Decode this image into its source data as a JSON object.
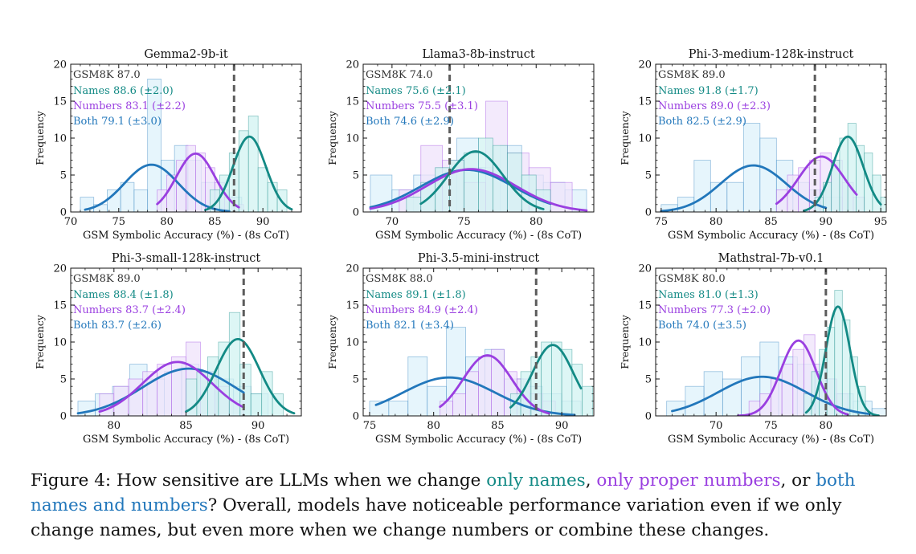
{
  "colors": {
    "names": "#138a85",
    "names_fill": "#d2f3f1",
    "numbers": "#9a3fe0",
    "numbers_fill": "#efe3fb",
    "both": "#2277bb",
    "both_fill": "#ddf1fb",
    "reference": "#5c5c5c"
  },
  "caption": {
    "prefix": "Figure 4: How sensitive are LLMs when we change ",
    "names": "only names",
    "sep1": ", ",
    "numbers": "only proper numbers",
    "sep2": ", or ",
    "both": "both names and numbers",
    "suffix": "? Overall, models have noticeable performance variation even if we only change names, but even more when we change numbers or combine these changes."
  },
  "chart_data": [
    {
      "type": "bar",
      "title": "Gemma2-9b-it",
      "xlabel": "GSM Symbolic Accuracy (%) - (8s CoT)",
      "ylabel": "Frequency",
      "xlim": [
        70,
        94
      ],
      "ylim": [
        0,
        20
      ],
      "xticks": [
        70,
        75,
        80,
        85,
        90
      ],
      "yticks": [
        0,
        5,
        10,
        15,
        20
      ],
      "reference": {
        "label": "GSM8K",
        "value": "87.0",
        "x": 87.0
      },
      "series": [
        {
          "key": "names",
          "name": "Names",
          "mean": "88.6",
          "std": "(±2.0)",
          "hist": {
            "start": 84.5,
            "width": 1,
            "counts": [
              3,
              5,
              8,
              11,
              13,
              6,
              4,
              3
            ]
          },
          "curve": {
            "mean": 88.6,
            "sd": 1.7,
            "peak": 10.2,
            "range": [
              84.0,
              93.0
            ]
          }
        },
        {
          "key": "numbers",
          "name": "Numbers",
          "mean": "83.1",
          "std": "(±2.2)",
          "hist": {
            "start": 79.0,
            "width": 1,
            "counts": [
              3,
              5,
              7,
              9,
              8,
              6,
              4,
              2,
              1
            ]
          },
          "curve": {
            "mean": 83.0,
            "sd": 2.0,
            "peak": 7.9,
            "range": [
              79.0,
              87.5
            ]
          }
        },
        {
          "key": "both",
          "name": "Both",
          "mean": "79.1",
          "std": "(±3.0)",
          "hist": {
            "start": 71.0,
            "width": 1.4,
            "counts": [
              2,
              1,
              3,
              4,
              3,
              18,
              7,
              9,
              7,
              4,
              3,
              2
            ]
          },
          "curve": {
            "mean": 78.4,
            "sd": 2.8,
            "peak": 6.4,
            "range": [
              71.5,
              86.5
            ]
          }
        }
      ]
    },
    {
      "type": "bar",
      "title": "Llama3-8b-instruct",
      "xlabel": "GSM Symbolic Accuracy (%) - (8s CoT)",
      "ylabel": "Frequency",
      "xlim": [
        68,
        84
      ],
      "ylim": [
        0,
        20
      ],
      "xticks": [
        70,
        75,
        80
      ],
      "yticks": [
        0,
        5,
        10,
        15,
        20
      ],
      "reference": {
        "label": "GSM8K",
        "value": "74.0",
        "x": 74.0
      },
      "series": [
        {
          "key": "names",
          "name": "Names",
          "mean": "75.6",
          "std": "(±2.1)",
          "hist": {
            "start": 71.0,
            "width": 1,
            "counts": [
              2,
              4,
              6,
              7,
              8,
              10,
              9,
              8,
              5,
              3
            ]
          },
          "curve": {
            "mean": 75.8,
            "sd": 1.9,
            "peak": 8.2,
            "range": [
              72.0,
              80.5
            ]
          }
        },
        {
          "key": "numbers",
          "name": "Numbers",
          "mean": "75.5",
          "std": "(±3.1)",
          "hist": {
            "start": 70.5,
            "width": 1.5,
            "counts": [
              3,
              9,
              7,
              4,
              15,
              8,
              6,
              4
            ]
          },
          "curve": {
            "mean": 75.5,
            "sd": 3.1,
            "peak": 5.8,
            "range": [
              68.5,
              83.5
            ]
          }
        },
        {
          "key": "both",
          "name": "Both",
          "mean": "74.6",
          "std": "(±2.9)",
          "hist": {
            "start": 68.5,
            "width": 1.5,
            "counts": [
              5,
              3,
              5,
              6,
              10,
              6,
              9,
              5,
              4,
              3
            ]
          },
          "curve": {
            "mean": 75.2,
            "sd": 3.2,
            "peak": 5.7,
            "range": [
              68.5,
              81.0
            ]
          }
        }
      ]
    },
    {
      "type": "bar",
      "title": "Phi-3-medium-128k-instruct",
      "xlabel": "GSM Symbolic Accuracy (%) - (8s CoT)",
      "ylabel": "Frequency",
      "xlim": [
        74.5,
        95.5
      ],
      "ylim": [
        0,
        20
      ],
      "xticks": [
        75,
        80,
        85,
        90,
        95
      ],
      "yticks": [
        0,
        5,
        10,
        15,
        20
      ],
      "reference": {
        "label": "GSM8K",
        "value": "89.0",
        "x": 89.0
      },
      "series": [
        {
          "key": "names",
          "name": "Names",
          "mean": "91.8",
          "std": "(±1.7)",
          "hist": {
            "start": 89.0,
            "width": 0.75,
            "counts": [
              2,
              4,
              7,
              10,
              12,
              9,
              8,
              5,
              2
            ]
          },
          "curve": {
            "mean": 92.0,
            "sd": 1.4,
            "peak": 10.2,
            "range": [
              88.0,
              95.0
            ]
          }
        },
        {
          "key": "numbers",
          "name": "Numbers",
          "mean": "89.0",
          "std": "(±2.3)",
          "hist": {
            "start": 85.5,
            "width": 1,
            "counts": [
              3,
              5,
              6,
              7,
              8,
              7,
              4,
              2
            ]
          },
          "curve": {
            "mean": 89.6,
            "sd": 2.1,
            "peak": 7.5,
            "range": [
              85.5,
              92.8
            ]
          }
        },
        {
          "key": "both",
          "name": "Both",
          "mean": "82.5",
          "std": "(±2.9)",
          "hist": {
            "start": 75.0,
            "width": 1.5,
            "counts": [
              1,
              2,
              7,
              4,
              4,
              12,
              10,
              7,
              4,
              3,
              2
            ]
          },
          "curve": {
            "mean": 83.4,
            "sd": 3.0,
            "peak": 6.3,
            "range": [
              75.0,
              90.0
            ]
          }
        }
      ]
    },
    {
      "type": "bar",
      "title": "Phi-3-small-128k-instruct",
      "xlabel": "GSM Symbolic Accuracy (%) - (8s CoT)",
      "ylabel": "Frequency",
      "xlim": [
        77,
        93
      ],
      "ylim": [
        0,
        20
      ],
      "xticks": [
        80,
        85,
        90
      ],
      "yticks": [
        0,
        5,
        10,
        15,
        20
      ],
      "reference": {
        "label": "GSM8K",
        "value": "89.0",
        "x": 89.0
      },
      "series": [
        {
          "key": "names",
          "name": "Names",
          "mean": "88.4",
          "std": "(±1.8)",
          "hist": {
            "start": 85.0,
            "width": 0.75,
            "counts": [
              5,
              6,
              8,
              10,
              14,
              7,
              3,
              6,
              3
            ]
          },
          "curve": {
            "mean": 88.6,
            "sd": 1.5,
            "peak": 10.4,
            "range": [
              85.0,
              92.5
            ]
          }
        },
        {
          "key": "numbers",
          "name": "Numbers",
          "mean": "83.7",
          "std": "(±2.4)",
          "hist": {
            "start": 79.0,
            "width": 1,
            "counts": [
              3,
              4,
              5,
              6,
              7,
              8,
              10,
              6,
              4,
              2
            ]
          },
          "curve": {
            "mean": 84.4,
            "sd": 2.4,
            "peak": 7.3,
            "range": [
              79.0,
              89.0
            ]
          }
        },
        {
          "key": "both",
          "name": "Both",
          "mean": "83.7",
          "std": "(±2.6)",
          "hist": {
            "start": 77.5,
            "width": 1.2,
            "counts": [
              2,
              3,
              4,
              7,
              5,
              6,
              7,
              6,
              5,
              4,
              3
            ]
          },
          "curve": {
            "mean": 85.2,
            "sd": 3.2,
            "peak": 6.4,
            "range": [
              77.5,
              89.0
            ]
          }
        }
      ]
    },
    {
      "type": "bar",
      "title": "Phi-3.5-mini-instruct",
      "xlabel": "GSM Symbolic Accuracy (%) - (8s CoT)",
      "ylabel": "Frequency",
      "xlim": [
        74.5,
        92.5
      ],
      "ylim": [
        0,
        20
      ],
      "xticks": [
        75,
        80,
        85,
        90
      ],
      "yticks": [
        0,
        5,
        10,
        15,
        20
      ],
      "reference": {
        "label": "GSM8K",
        "value": "88.0",
        "x": 88.0
      },
      "series": [
        {
          "key": "names",
          "name": "Names",
          "mean": "89.1",
          "std": "(±1.8)",
          "hist": {
            "start": 86.0,
            "width": 0.8,
            "counts": [
              3,
              6,
              8,
              10,
              10,
              9,
              7,
              4
            ]
          },
          "curve": {
            "mean": 89.3,
            "sd": 1.6,
            "peak": 9.6,
            "range": [
              86.0,
              91.5
            ]
          }
        },
        {
          "key": "numbers",
          "name": "Numbers",
          "mean": "84.9",
          "std": "(±2.4)",
          "hist": {
            "start": 80.5,
            "width": 1,
            "counts": [
              2,
              3,
              6,
              8,
              9,
              6,
              5,
              3,
              2
            ]
          },
          "curve": {
            "mean": 84.2,
            "sd": 1.9,
            "peak": 8.2,
            "range": [
              80.5,
              89.0
            ]
          }
        },
        {
          "key": "both",
          "name": "Both",
          "mean": "82.1",
          "std": "(±3.4)",
          "hist": {
            "start": 75.0,
            "width": 1.5,
            "counts": [
              2,
              2,
              8,
              4,
              12,
              8,
              9,
              5,
              4,
              3,
              2
            ]
          },
          "curve": {
            "mean": 81.2,
            "sd": 3.6,
            "peak": 5.2,
            "range": [
              75.5,
              91.0
            ]
          }
        }
      ]
    },
    {
      "type": "bar",
      "title": "Mathstral-7b-v0.1",
      "xlabel": "GSM Symbolic Accuracy (%) - (8s CoT)",
      "ylabel": "Frequency",
      "xlim": [
        64.5,
        85.5
      ],
      "ylim": [
        0,
        20
      ],
      "xticks": [
        70,
        75,
        80
      ],
      "yticks": [
        0,
        5,
        10,
        15,
        20
      ],
      "reference": {
        "label": "GSM8K",
        "value": "80.0",
        "x": 80.0
      },
      "series": [
        {
          "key": "names",
          "name": "Names",
          "mean": "81.0",
          "std": "(±1.3)",
          "hist": {
            "start": 78.0,
            "width": 0.7,
            "counts": [
              3,
              6,
              9,
              12,
              17,
              13,
              8,
              4
            ]
          },
          "curve": {
            "mean": 81.1,
            "sd": 1.1,
            "peak": 14.8,
            "range": [
              78.2,
              84.8
            ]
          }
        },
        {
          "key": "numbers",
          "name": "Numbers",
          "mean": "77.3",
          "std": "(±2.0)",
          "hist": {
            "start": 73.0,
            "width": 1,
            "counts": [
              2,
              3,
              5,
              7,
              9,
              11,
              7,
              5,
              3
            ]
          },
          "curve": {
            "mean": 77.5,
            "sd": 1.6,
            "peak": 10.2,
            "range": [
              72.0,
              82.0
            ]
          }
        },
        {
          "key": "both",
          "name": "Both",
          "mean": "74.0",
          "std": "(±3.5)",
          "hist": {
            "start": 65.5,
            "width": 1.7,
            "counts": [
              2,
              4,
              6,
              5,
              8,
              10,
              8,
              7,
              5,
              3,
              2,
              1
            ]
          },
          "curve": {
            "mean": 74.2,
            "sd": 4.0,
            "peak": 5.3,
            "range": [
              66.0,
              84.0
            ]
          }
        }
      ]
    }
  ]
}
